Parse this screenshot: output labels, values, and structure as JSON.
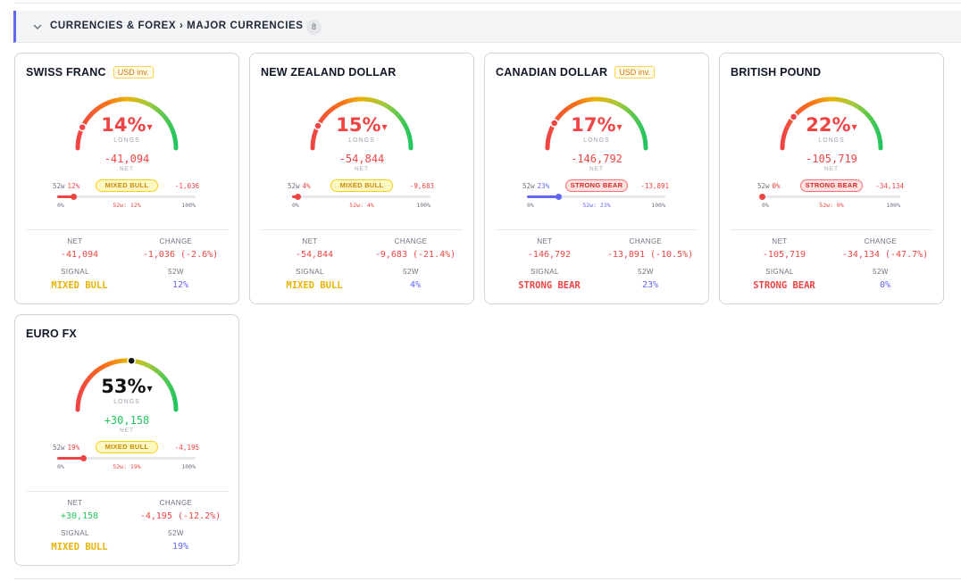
{
  "section": {
    "title": "CURRENCIES & FOREX › MAJOR CURRENCIES",
    "count": "8",
    "accent": "#6366f1"
  },
  "labels": {
    "longs": "LONGS",
    "net": "NET",
    "change": "CHANGE",
    "signal": "SIGNAL",
    "w52": "52W",
    "w52_small": "52w",
    "range_lo": "0%",
    "range_hi": "100%",
    "usd_inv": "USD inv."
  },
  "colors": {
    "red": "#ef4444",
    "green": "#22c55e",
    "amber": "#eab308",
    "indigo": "#6366f1",
    "black": "#111111"
  },
  "cards": [
    {
      "name": "SWISS FRANC",
      "usd_inv": true,
      "longs_pct": 14,
      "pct": "14%",
      "pct_color": "red",
      "net": "-41,094",
      "net_color": "red",
      "w52_pct": 12,
      "w52": "12%",
      "w52_marker": "52w: 12%",
      "range_color": "red",
      "signal": "MIXED BULL",
      "signal_type": "bull",
      "change_small": "-1,036",
      "change": "-1,036 (-2.6%)",
      "change_color": "red"
    },
    {
      "name": "NEW ZEALAND DOLLAR",
      "usd_inv": false,
      "longs_pct": 15,
      "pct": "15%",
      "pct_color": "red",
      "net": "-54,844",
      "net_color": "red",
      "w52_pct": 4,
      "w52": "4%",
      "w52_marker": "52w: 4%",
      "range_color": "red",
      "signal": "MIXED BULL",
      "signal_type": "bull",
      "change_small": "-9,683",
      "change": "-9,683 (-21.4%)",
      "change_color": "red"
    },
    {
      "name": "CANADIAN DOLLAR",
      "usd_inv": true,
      "longs_pct": 17,
      "pct": "17%",
      "pct_color": "red",
      "net": "-146,792",
      "net_color": "red",
      "w52_pct": 23,
      "w52": "23%",
      "w52_marker": "52w: 23%",
      "range_color": "indigo",
      "signal": "STRONG BEAR",
      "signal_type": "bear",
      "change_small": "-13,891",
      "change": "-13,891 (-10.5%)",
      "change_color": "red"
    },
    {
      "name": "BRITISH POUND",
      "usd_inv": false,
      "longs_pct": 22,
      "pct": "22%",
      "pct_color": "red",
      "net": "-105,719",
      "net_color": "red",
      "w52_pct": 0,
      "w52": "0%",
      "w52_marker": "52w: 0%",
      "range_color": "red",
      "signal": "STRONG BEAR",
      "signal_type": "bear",
      "change_small": "-34,134",
      "change": "-34,134 (-47.7%)",
      "change_color": "red"
    },
    {
      "name": "EURO FX",
      "usd_inv": false,
      "longs_pct": 53,
      "pct": "53%",
      "pct_color": "black",
      "net": "+30,158",
      "net_color": "green",
      "w52_pct": 19,
      "w52": "19%",
      "w52_marker": "52w: 19%",
      "range_color": "red",
      "signal": "MIXED BULL",
      "signal_type": "bull",
      "change_small": "-4,195",
      "change": "-4,195 (-12.2%)",
      "change_color": "red"
    }
  ]
}
